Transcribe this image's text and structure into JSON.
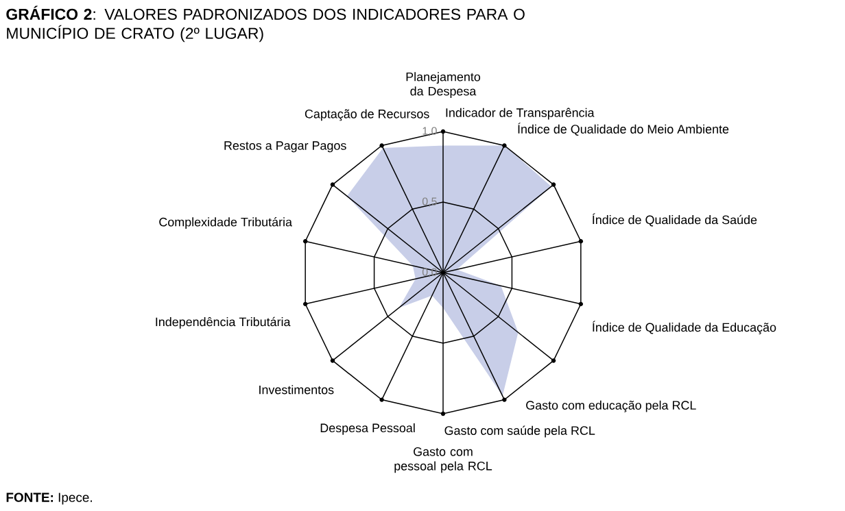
{
  "chart_data": {
    "type": "radar",
    "title": "**GRÁFICO 2**: VALORES PADRONIZADOS DOS INDICADORES PARA O MUNICÍPIO DE CRATO (2º LUGAR)",
    "categories": [
      "Planejamento da Despesa",
      "Indicador de Transparência",
      "Índice de Qualidade do Meio Ambiente",
      "Índice de Qualidade da Saúde",
      "Índice de Qualidade da Educação",
      "Gasto com educação pela RCL",
      "Gasto com saúde pela RCL",
      "Gasto com pessoal pela RCL",
      "Despesa Pessoal",
      "Investimentos",
      "Independência Tributária",
      "Complexidade Tributária",
      "Restos a Pagar Pagos",
      "Captação de Recursos"
    ],
    "series": [
      {
        "color": "#c8cee8",
        "values": [
          0.9,
          1.0,
          0.98,
          0.1,
          0.42,
          0.68,
          0.97,
          0.25,
          0.18,
          0.4,
          0.2,
          0.22,
          0.87,
          0.98
        ]
      }
    ],
    "ylim": [
      0,
      1
    ],
    "yticks": [
      {
        "value": 0,
        "label": "0,0"
      },
      {
        "value": 0.5,
        "label": "0,5"
      },
      {
        "value": 1,
        "label": "1,0"
      }
    ],
    "grid": true,
    "annotations": [
      "**FONTE:** Ipece."
    ]
  }
}
